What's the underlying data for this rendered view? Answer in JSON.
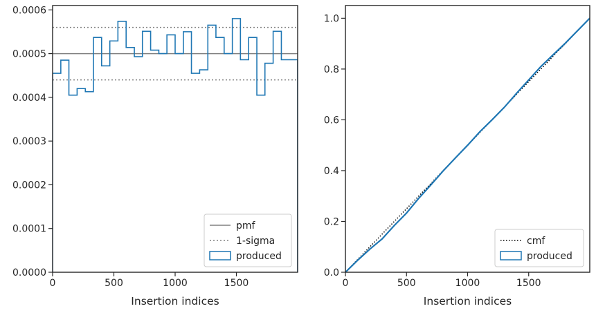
{
  "chart_data": [
    {
      "type": "step-histogram",
      "xlabel": "Insertion indices",
      "xlim": [
        0,
        2000
      ],
      "ylim": [
        0,
        0.00061
      ],
      "x_ticks": [
        0,
        500,
        1000,
        1500
      ],
      "x_tick_labels": [
        "0",
        "500",
        "1000",
        "1500"
      ],
      "y_ticks": [
        0,
        0.0001,
        0.0002,
        0.0003,
        0.0004,
        0.0005,
        0.0006
      ],
      "y_tick_labels": [
        "0.0000",
        "0.0001",
        "0.0002",
        "0.0003",
        "0.0004",
        "0.0005",
        "0.0006"
      ],
      "bin_edges": [
        0,
        67,
        133,
        200,
        267,
        333,
        400,
        467,
        533,
        600,
        667,
        733,
        800,
        867,
        933,
        1000,
        1067,
        1133,
        1200,
        1267,
        1333,
        1400,
        1467,
        1533,
        1600,
        1667,
        1733,
        1800,
        1867,
        1933,
        2000
      ],
      "series": [
        {
          "name": "produced",
          "color": "#1f77b4",
          "values": [
            0.000455,
            0.000485,
            0.000405,
            0.00042,
            0.000413,
            0.000537,
            0.000472,
            0.000529,
            0.000574,
            0.000514,
            0.000493,
            0.000551,
            0.000508,
            0.0005,
            0.000543,
            0.0005,
            0.00055,
            0.000455,
            0.000463,
            0.000565,
            0.000537,
            0.0005,
            0.00058,
            0.000486,
            0.000537,
            0.000405,
            0.000478,
            0.000551,
            0.000486,
            0.000486
          ]
        }
      ],
      "reference_lines": [
        {
          "name": "pmf",
          "y": 0.0005,
          "color": "#808080",
          "style": "solid"
        },
        {
          "name": "1-sigma",
          "y": 0.00056,
          "color": "#808080",
          "style": "dotted"
        },
        {
          "name": "1-sigma",
          "y": 0.00044,
          "color": "#808080",
          "style": "dotted",
          "legend": false
        }
      ],
      "legend": {
        "placement": "lower-right",
        "entries": [
          {
            "label": "pmf",
            "kind": "solid-line",
            "color": "#808080"
          },
          {
            "label": "1-sigma",
            "kind": "dotted-line",
            "color": "#808080"
          },
          {
            "label": "produced",
            "kind": "box",
            "color": "#1f77b4"
          }
        ]
      }
    },
    {
      "type": "line",
      "xlabel": "Insertion indices",
      "xlim": [
        0,
        2000
      ],
      "ylim": [
        0,
        1.05
      ],
      "x_ticks": [
        0,
        500,
        1000,
        1500
      ],
      "x_tick_labels": [
        "0",
        "500",
        "1000",
        "1500"
      ],
      "y_ticks": [
        0,
        0.2,
        0.4,
        0.6,
        0.8,
        1.0
      ],
      "y_tick_labels": [
        "0.0",
        "0.2",
        "0.4",
        "0.6",
        "0.8",
        "1.0"
      ],
      "series": [
        {
          "name": "produced",
          "color": "#1f77b4",
          "x": [
            0,
            100,
            200,
            300,
            400,
            500,
            600,
            700,
            800,
            900,
            1000,
            1100,
            1200,
            1300,
            1400,
            1500,
            1600,
            1700,
            1800,
            1900,
            2000
          ],
          "y": [
            0,
            0.047,
            0.091,
            0.131,
            0.184,
            0.233,
            0.291,
            0.344,
            0.399,
            0.45,
            0.5,
            0.553,
            0.6,
            0.649,
            0.704,
            0.757,
            0.81,
            0.856,
            0.902,
            0.951,
            1.0
          ]
        },
        {
          "name": "cmf",
          "color": "#000000",
          "style": "dotted",
          "x": [
            0,
            2000
          ],
          "y": [
            0,
            1.0
          ]
        }
      ],
      "legend": {
        "placement": "lower-right",
        "entries": [
          {
            "label": "cmf",
            "kind": "dotted-line",
            "color": "#000000"
          },
          {
            "label": "produced",
            "kind": "box",
            "color": "#1f77b4"
          }
        ]
      }
    }
  ]
}
